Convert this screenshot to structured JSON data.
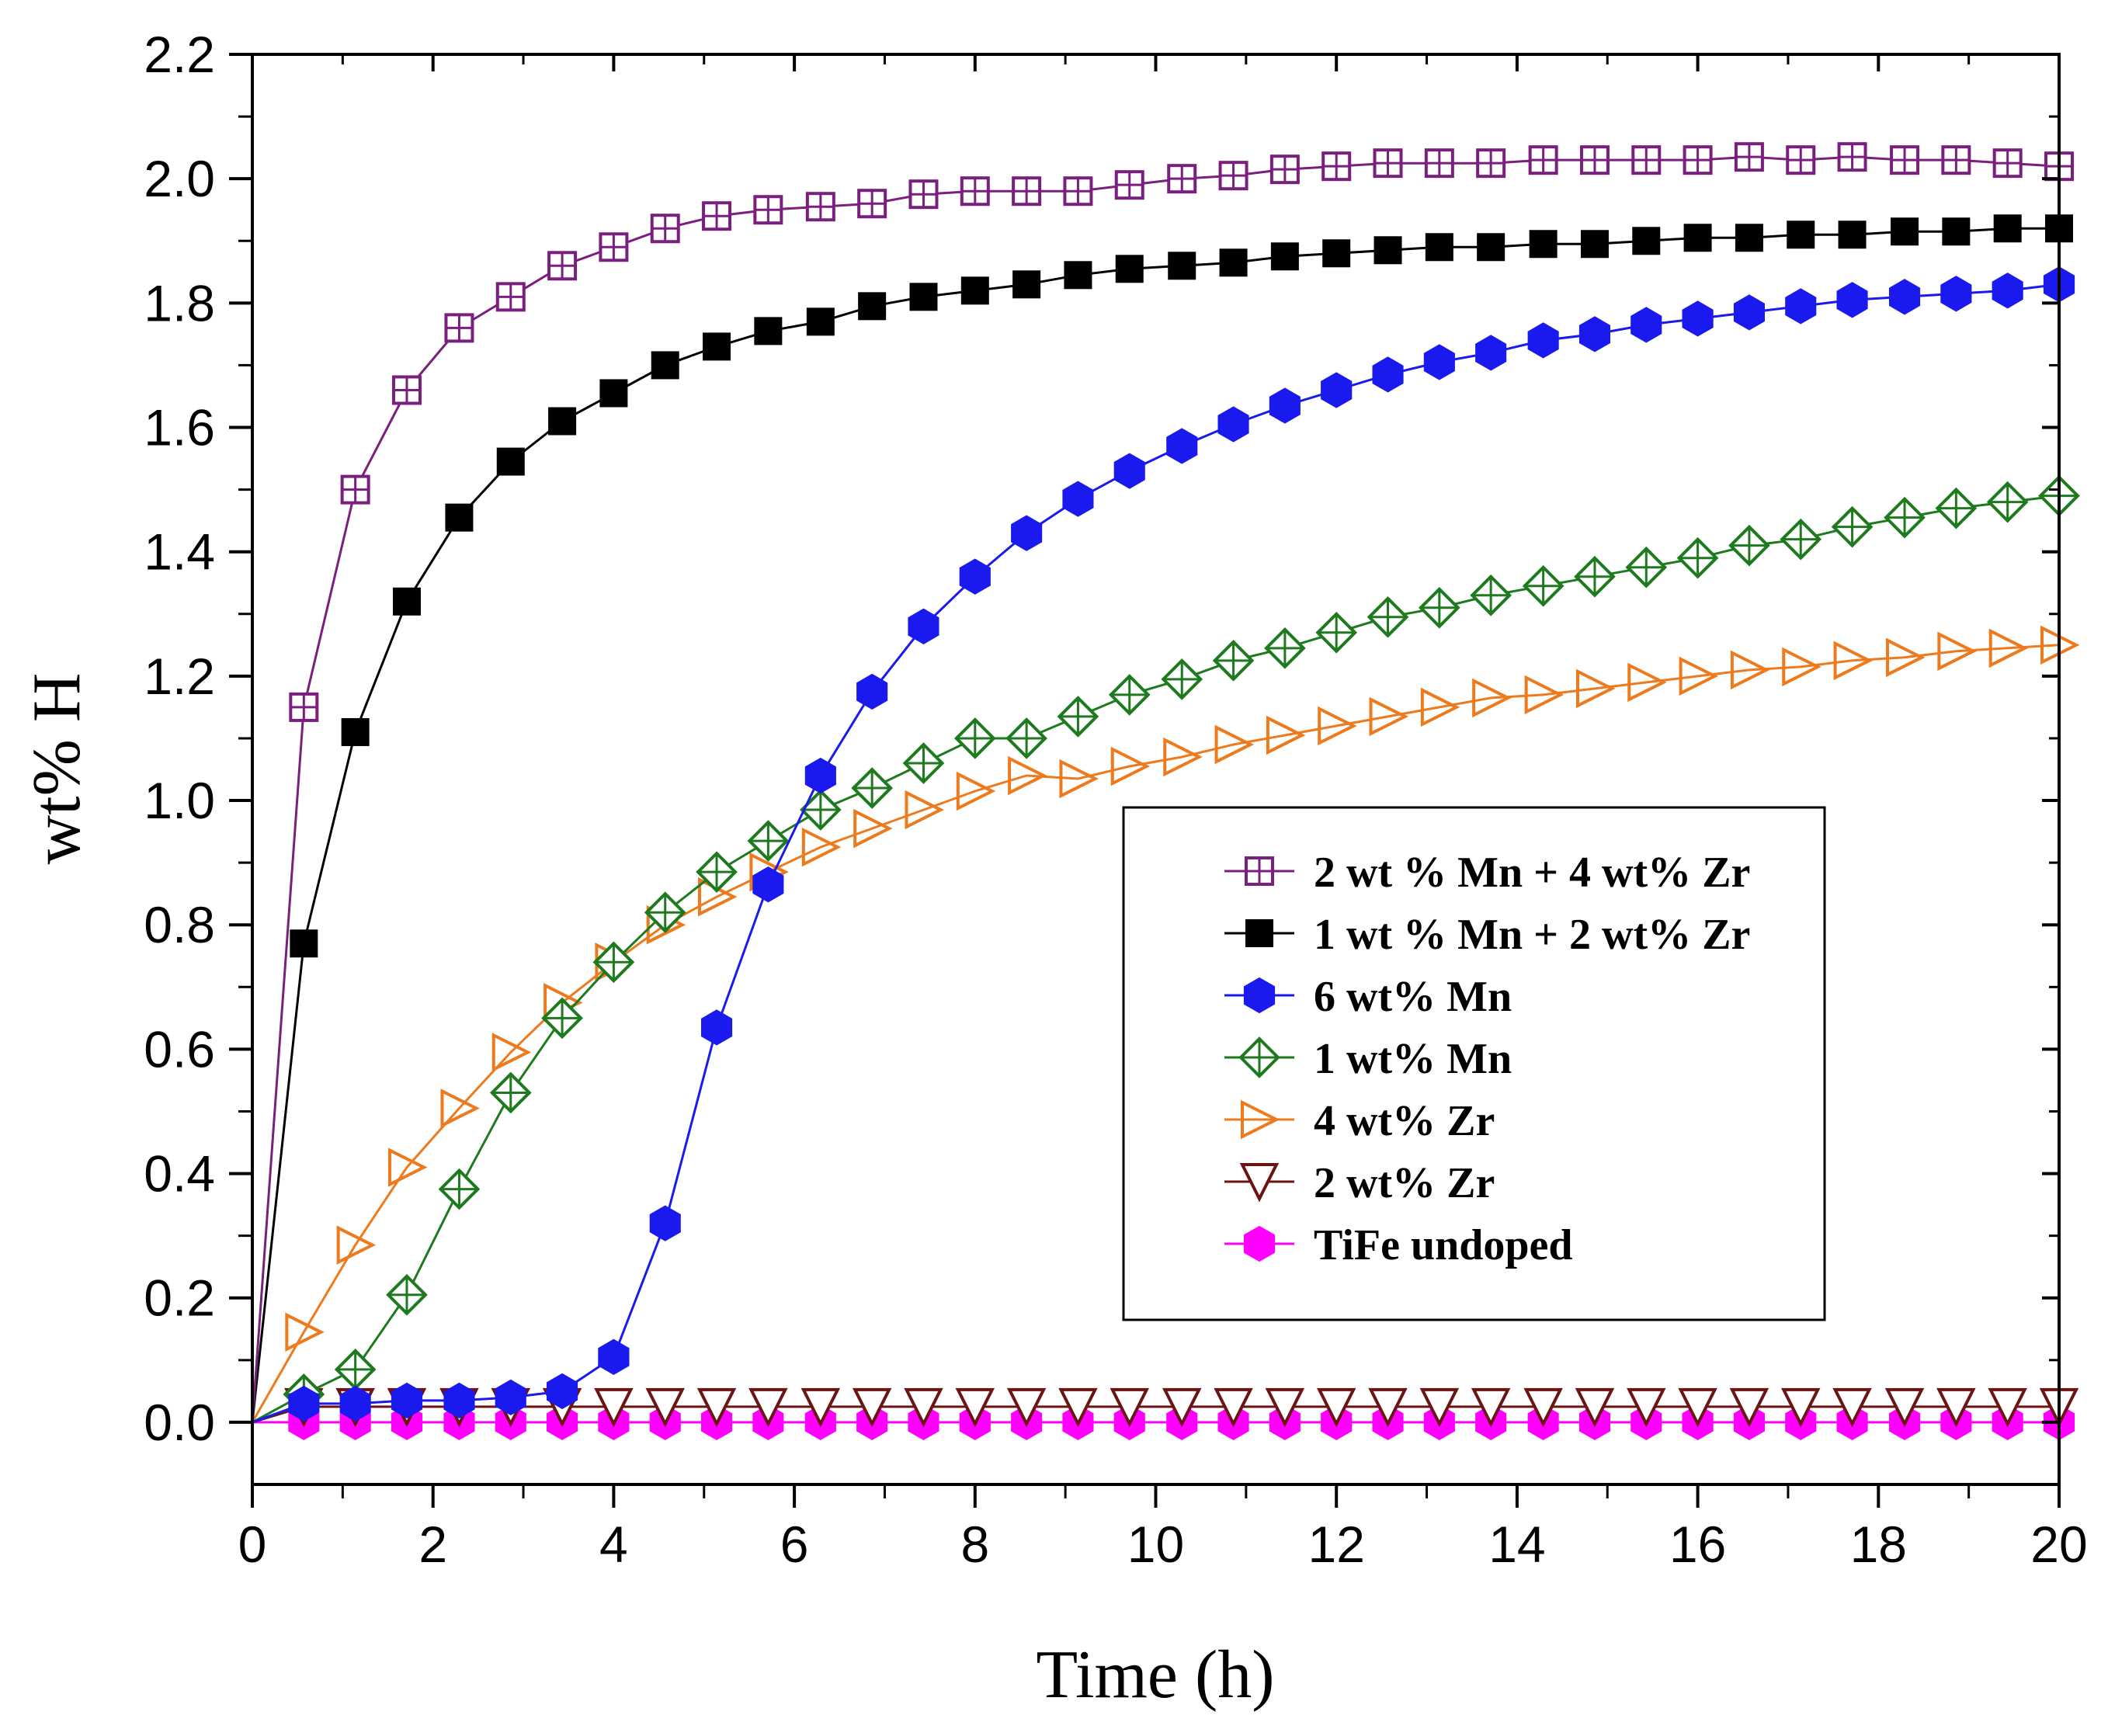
{
  "chart_data": {
    "type": "line",
    "title": "",
    "xlabel": "Time (h)",
    "ylabel": "wt% H",
    "xlim": [
      0,
      20
    ],
    "ylim": [
      -0.1,
      2.2
    ],
    "xticks": [
      0,
      2,
      4,
      6,
      8,
      10,
      12,
      14,
      16,
      18,
      20
    ],
    "xtick_labels": [
      "0",
      "2",
      "4",
      "6",
      "8",
      "10",
      "12",
      "14",
      "16",
      "18",
      "20"
    ],
    "yticks": [
      0.0,
      0.2,
      0.4,
      0.6,
      0.8,
      1.0,
      1.2,
      1.4,
      1.6,
      1.8,
      2.0,
      2.2
    ],
    "ytick_labels": [
      "0.0",
      "0.2",
      "0.4",
      "0.6",
      "0.8",
      "1.0",
      "1.2",
      "1.4",
      "1.6",
      "1.8",
      "2.0",
      "2.2"
    ],
    "legend_position": "center-right",
    "grid": false,
    "series": [
      {
        "name": "2 wt % Mn + 4 wt% Zr",
        "color": "#7B1F7E",
        "marker": "square-cross-open",
        "x": [
          0,
          0.57,
          1.14,
          1.71,
          2.29,
          2.86,
          3.43,
          4.0,
          4.57,
          5.14,
          5.71,
          6.29,
          6.86,
          7.43,
          8.0,
          8.57,
          9.14,
          9.71,
          10.29,
          10.86,
          11.43,
          12.0,
          12.57,
          13.14,
          13.71,
          14.29,
          14.86,
          15.43,
          16.0,
          16.57,
          17.14,
          17.71,
          18.29,
          18.86,
          19.43,
          20.0
        ],
        "values": [
          0,
          1.15,
          1.5,
          1.66,
          1.76,
          1.81,
          1.86,
          1.89,
          1.92,
          1.94,
          1.95,
          1.955,
          1.96,
          1.975,
          1.98,
          1.98,
          1.98,
          1.99,
          2.0,
          2.005,
          2.015,
          2.02,
          2.025,
          2.025,
          2.025,
          2.03,
          2.03,
          2.03,
          2.03,
          2.035,
          2.03,
          2.035,
          2.03,
          2.03,
          2.025,
          2.02
        ]
      },
      {
        "name": "1 wt % Mn + 2 wt% Zr",
        "color": "#000000",
        "marker": "square-filled",
        "x": [
          0,
          0.57,
          1.14,
          1.71,
          2.29,
          2.86,
          3.43,
          4.0,
          4.57,
          5.14,
          5.71,
          6.29,
          6.86,
          7.43,
          8.0,
          8.57,
          9.14,
          9.71,
          10.29,
          10.86,
          11.43,
          12.0,
          12.57,
          13.14,
          13.71,
          14.29,
          14.86,
          15.43,
          16.0,
          16.57,
          17.14,
          17.71,
          18.29,
          18.86,
          19.43,
          20.0
        ],
        "values": [
          0,
          0.77,
          1.11,
          1.32,
          1.455,
          1.545,
          1.61,
          1.655,
          1.7,
          1.73,
          1.755,
          1.77,
          1.795,
          1.81,
          1.82,
          1.83,
          1.845,
          1.855,
          1.86,
          1.865,
          1.875,
          1.88,
          1.885,
          1.89,
          1.89,
          1.895,
          1.895,
          1.9,
          1.905,
          1.905,
          1.91,
          1.91,
          1.915,
          1.915,
          1.92,
          1.92
        ]
      },
      {
        "name": "6 wt% Mn",
        "color": "#1a1aee",
        "marker": "hexagon-filled",
        "x": [
          0,
          0.57,
          1.14,
          1.71,
          2.29,
          2.86,
          3.43,
          4.0,
          4.57,
          5.14,
          5.71,
          6.29,
          6.86,
          7.43,
          8.0,
          8.57,
          9.14,
          9.71,
          10.29,
          10.86,
          11.43,
          12.0,
          12.57,
          13.14,
          13.71,
          14.29,
          14.86,
          15.43,
          16.0,
          16.57,
          17.14,
          17.71,
          18.29,
          18.86,
          19.43,
          20.0
        ],
        "values": [
          0,
          0.03,
          0.03,
          0.035,
          0.035,
          0.04,
          0.05,
          0.105,
          0.32,
          0.635,
          0.865,
          1.04,
          1.175,
          1.28,
          1.36,
          1.43,
          1.485,
          1.53,
          1.57,
          1.605,
          1.635,
          1.66,
          1.685,
          1.705,
          1.72,
          1.74,
          1.75,
          1.765,
          1.775,
          1.785,
          1.795,
          1.805,
          1.81,
          1.815,
          1.82,
          1.83
        ]
      },
      {
        "name": "1 wt% Mn",
        "color": "#1E7A1E",
        "marker": "diamond-cross-open",
        "x": [
          0,
          0.57,
          1.14,
          1.71,
          2.29,
          2.86,
          3.43,
          4.0,
          4.57,
          5.14,
          5.71,
          6.29,
          6.86,
          7.43,
          8.0,
          8.57,
          9.14,
          9.71,
          10.29,
          10.86,
          11.43,
          12.0,
          12.57,
          13.14,
          13.71,
          14.29,
          14.86,
          15.43,
          16.0,
          16.57,
          17.14,
          17.71,
          18.29,
          18.86,
          19.43,
          20.0
        ],
        "values": [
          0,
          0.045,
          0.085,
          0.205,
          0.375,
          0.53,
          0.65,
          0.74,
          0.82,
          0.885,
          0.935,
          0.985,
          1.02,
          1.06,
          1.1,
          1.1,
          1.135,
          1.17,
          1.195,
          1.225,
          1.245,
          1.27,
          1.295,
          1.31,
          1.33,
          1.345,
          1.36,
          1.375,
          1.39,
          1.41,
          1.42,
          1.44,
          1.455,
          1.47,
          1.48,
          1.49
        ]
      },
      {
        "name": "4 wt% Zr",
        "color": "#EE7A1E",
        "marker": "triangle-right-open",
        "x": [
          0,
          0.57,
          1.14,
          1.71,
          2.29,
          2.86,
          3.43,
          4.0,
          4.57,
          5.14,
          5.71,
          6.29,
          6.86,
          7.43,
          8.0,
          8.57,
          9.14,
          9.71,
          10.29,
          10.86,
          11.43,
          12.0,
          12.57,
          13.14,
          13.71,
          14.29,
          14.86,
          15.43,
          16.0,
          16.57,
          17.14,
          17.71,
          18.29,
          18.86,
          19.43,
          20.0
        ],
        "values": [
          0,
          0.145,
          0.285,
          0.41,
          0.505,
          0.595,
          0.675,
          0.74,
          0.8,
          0.845,
          0.885,
          0.925,
          0.955,
          0.985,
          1.015,
          1.04,
          1.035,
          1.055,
          1.07,
          1.09,
          1.105,
          1.12,
          1.135,
          1.15,
          1.165,
          1.17,
          1.18,
          1.19,
          1.2,
          1.21,
          1.215,
          1.225,
          1.23,
          1.24,
          1.245,
          1.25
        ]
      },
      {
        "name": "2 wt% Zr",
        "color": "#6B1414",
        "marker": "triangle-down-open",
        "x": [
          0,
          0.57,
          1.14,
          1.71,
          2.29,
          2.86,
          3.43,
          4.0,
          4.57,
          5.14,
          5.71,
          6.29,
          6.86,
          7.43,
          8.0,
          8.57,
          9.14,
          9.71,
          10.29,
          10.86,
          11.43,
          12.0,
          12.57,
          13.14,
          13.71,
          14.29,
          14.86,
          15.43,
          16.0,
          16.57,
          17.14,
          17.71,
          18.29,
          18.86,
          19.43,
          20.0
        ],
        "values": [
          0.0,
          0.025,
          0.025,
          0.025,
          0.025,
          0.025,
          0.025,
          0.025,
          0.025,
          0.025,
          0.025,
          0.025,
          0.025,
          0.025,
          0.025,
          0.025,
          0.025,
          0.025,
          0.025,
          0.025,
          0.025,
          0.025,
          0.025,
          0.025,
          0.025,
          0.025,
          0.025,
          0.025,
          0.025,
          0.025,
          0.025,
          0.025,
          0.025,
          0.025,
          0.025,
          0.025
        ]
      },
      {
        "name": "TiFe undoped",
        "color": "#FF00FF",
        "marker": "hexagon-filled",
        "x": [
          0,
          0.57,
          1.14,
          1.71,
          2.29,
          2.86,
          3.43,
          4.0,
          4.57,
          5.14,
          5.71,
          6.29,
          6.86,
          7.43,
          8.0,
          8.57,
          9.14,
          9.71,
          10.29,
          10.86,
          11.43,
          12.0,
          12.57,
          13.14,
          13.71,
          14.29,
          14.86,
          15.43,
          16.0,
          16.57,
          17.14,
          17.71,
          18.29,
          18.86,
          19.43,
          20.0
        ],
        "values": [
          0,
          0,
          0,
          0,
          0,
          0,
          0,
          0,
          0,
          0,
          0,
          0,
          0,
          0,
          0,
          0,
          0,
          0,
          0,
          0,
          0,
          0,
          0,
          0,
          0,
          0,
          0,
          0,
          0,
          0,
          0,
          0,
          0,
          0,
          0,
          0
        ]
      }
    ]
  }
}
